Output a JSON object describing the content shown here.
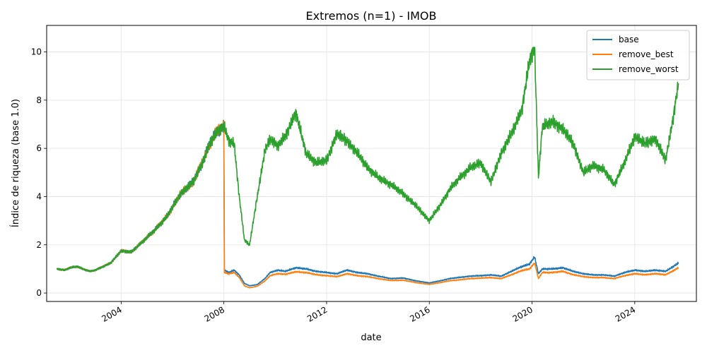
{
  "chart_data": {
    "type": "line",
    "title": "Extremos (n=1) - IMOB",
    "xlabel": "date",
    "ylabel": "Índice de riqueza (base 1.0)",
    "xlim": [
      2001.1,
      2026.4
    ],
    "ylim": [
      -0.35,
      11.1
    ],
    "xticks": [
      2004,
      2008,
      2012,
      2016,
      2020,
      2024
    ],
    "yticks": [
      0,
      2,
      4,
      6,
      8,
      10
    ],
    "grid": true,
    "legend_position": "top-right",
    "series": [
      {
        "name": "base",
        "color": "#1f77b4",
        "x": [
          2001.5,
          2001.8,
          2002.0,
          2002.3,
          2002.5,
          2002.8,
          2003.0,
          2003.3,
          2003.6,
          2004.0,
          2004.4,
          2004.8,
          2005.3,
          2005.8,
          2006.3,
          2006.8,
          2007.2,
          2007.5,
          2007.8,
          2008.0,
          2008.02,
          2008.2,
          2008.4,
          2008.6,
          2008.8,
          2009.0,
          2009.3,
          2009.6,
          2009.8,
          2010.1,
          2010.4,
          2010.8,
          2011.2,
          2011.6,
          2012.0,
          2012.4,
          2012.8,
          2013.2,
          2013.6,
          2014.0,
          2014.5,
          2015.0,
          2015.5,
          2016.0,
          2016.4,
          2016.8,
          2017.2,
          2017.6,
          2018.0,
          2018.4,
          2018.8,
          2019.2,
          2019.6,
          2019.9,
          2020.1,
          2020.25,
          2020.4,
          2020.8,
          2021.2,
          2021.6,
          2022.0,
          2022.4,
          2022.8,
          2023.2,
          2023.6,
          2024.0,
          2024.4,
          2024.8,
          2025.2,
          2025.5,
          2025.7
        ],
        "y": [
          1.0,
          0.95,
          1.05,
          1.1,
          1.0,
          0.9,
          0.95,
          1.1,
          1.25,
          1.75,
          1.7,
          2.1,
          2.6,
          3.2,
          4.1,
          4.6,
          5.5,
          6.3,
          6.8,
          6.9,
          0.95,
          0.85,
          0.95,
          0.75,
          0.4,
          0.3,
          0.35,
          0.6,
          0.85,
          0.95,
          0.9,
          1.05,
          1.0,
          0.9,
          0.85,
          0.8,
          0.95,
          0.85,
          0.8,
          0.7,
          0.6,
          0.62,
          0.5,
          0.42,
          0.5,
          0.6,
          0.65,
          0.7,
          0.72,
          0.75,
          0.7,
          0.9,
          1.1,
          1.2,
          1.5,
          0.8,
          1.0,
          1.0,
          1.05,
          0.9,
          0.8,
          0.75,
          0.75,
          0.7,
          0.85,
          0.95,
          0.9,
          0.95,
          0.9,
          1.1,
          1.25
        ]
      },
      {
        "name": "remove_best",
        "color": "#ff7f0e",
        "x": [
          2001.5,
          2001.8,
          2002.0,
          2002.3,
          2002.5,
          2002.8,
          2003.0,
          2003.3,
          2003.6,
          2004.0,
          2004.4,
          2004.8,
          2005.3,
          2005.8,
          2006.3,
          2006.8,
          2007.2,
          2007.5,
          2007.8,
          2008.0,
          2008.02,
          2008.2,
          2008.4,
          2008.6,
          2008.8,
          2009.0,
          2009.3,
          2009.6,
          2009.8,
          2010.1,
          2010.4,
          2010.8,
          2011.2,
          2011.6,
          2012.0,
          2012.4,
          2012.8,
          2013.2,
          2013.6,
          2014.0,
          2014.5,
          2015.0,
          2015.5,
          2016.0,
          2016.4,
          2016.8,
          2017.2,
          2017.6,
          2018.0,
          2018.4,
          2018.8,
          2019.2,
          2019.6,
          2019.9,
          2020.1,
          2020.25,
          2020.4,
          2020.8,
          2021.2,
          2021.6,
          2022.0,
          2022.4,
          2022.8,
          2023.2,
          2023.6,
          2024.0,
          2024.4,
          2024.8,
          2025.2,
          2025.5,
          2025.7
        ],
        "y": [
          1.0,
          0.95,
          1.05,
          1.1,
          1.0,
          0.9,
          0.95,
          1.1,
          1.25,
          1.75,
          1.7,
          2.1,
          2.6,
          3.2,
          4.1,
          4.6,
          5.5,
          6.3,
          6.8,
          6.9,
          0.85,
          0.8,
          0.85,
          0.65,
          0.3,
          0.22,
          0.28,
          0.5,
          0.72,
          0.8,
          0.78,
          0.88,
          0.85,
          0.76,
          0.72,
          0.68,
          0.8,
          0.72,
          0.68,
          0.6,
          0.52,
          0.53,
          0.43,
          0.36,
          0.43,
          0.51,
          0.55,
          0.6,
          0.62,
          0.64,
          0.6,
          0.76,
          0.93,
          1.0,
          1.25,
          0.6,
          0.85,
          0.85,
          0.9,
          0.76,
          0.68,
          0.64,
          0.64,
          0.6,
          0.72,
          0.8,
          0.76,
          0.8,
          0.76,
          0.92,
          1.05
        ]
      },
      {
        "name": "remove_worst",
        "color": "#2ca02c",
        "x": [
          2001.5,
          2001.8,
          2002.0,
          2002.3,
          2002.5,
          2002.8,
          2003.0,
          2003.3,
          2003.6,
          2004.0,
          2004.4,
          2004.8,
          2005.3,
          2005.8,
          2006.3,
          2006.8,
          2007.2,
          2007.5,
          2007.8,
          2008.0,
          2008.2,
          2008.4,
          2008.6,
          2008.8,
          2009.0,
          2009.3,
          2009.6,
          2009.8,
          2010.1,
          2010.4,
          2010.8,
          2011.2,
          2011.6,
          2012.0,
          2012.4,
          2012.8,
          2013.2,
          2013.6,
          2014.0,
          2014.5,
          2015.0,
          2015.5,
          2016.0,
          2016.4,
          2016.8,
          2017.2,
          2017.6,
          2018.0,
          2018.4,
          2018.8,
          2019.2,
          2019.6,
          2019.9,
          2020.1,
          2020.25,
          2020.4,
          2020.8,
          2021.2,
          2021.6,
          2022.0,
          2022.4,
          2022.8,
          2023.2,
          2023.6,
          2024.0,
          2024.4,
          2024.8,
          2025.2,
          2025.5,
          2025.7
        ],
        "y": [
          1.0,
          0.95,
          1.05,
          1.1,
          1.0,
          0.9,
          0.95,
          1.1,
          1.25,
          1.75,
          1.7,
          2.1,
          2.6,
          3.2,
          4.1,
          4.6,
          5.5,
          6.3,
          6.8,
          6.9,
          6.3,
          6.2,
          4.0,
          2.2,
          2.0,
          4.0,
          5.9,
          6.4,
          6.1,
          6.5,
          7.5,
          5.8,
          5.4,
          5.5,
          6.6,
          6.3,
          5.8,
          5.2,
          4.8,
          4.5,
          4.1,
          3.6,
          3.0,
          3.6,
          4.3,
          4.8,
          5.2,
          5.4,
          4.6,
          5.8,
          6.6,
          7.6,
          9.6,
          10.2,
          4.8,
          6.9,
          7.1,
          6.8,
          6.2,
          5.0,
          5.3,
          5.1,
          4.5,
          5.4,
          6.5,
          6.2,
          6.4,
          5.5,
          7.3,
          8.7
        ]
      }
    ]
  }
}
